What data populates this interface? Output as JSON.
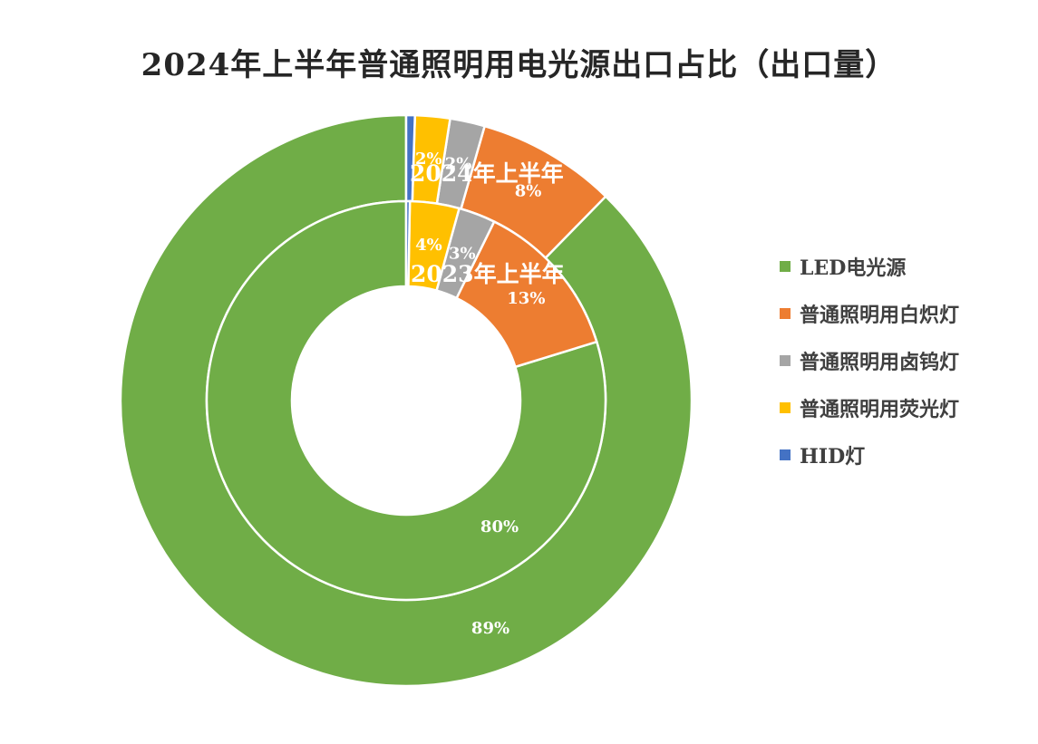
{
  "chart_data": {
    "type": "pie",
    "subtype": "doughnut",
    "title": "2024年上半年普通照明用电光源出口占比（出口量）",
    "categories": [
      "LED电光源",
      "普通照明用白炽灯",
      "普通照明用卤钨灯",
      "普通照明用荧光灯",
      "HID灯"
    ],
    "colors": [
      "#70ad47",
      "#ed7d31",
      "#a5a5a5",
      "#ffc000",
      "#4472c4"
    ],
    "series": [
      {
        "name": "2023年上半年",
        "ring": "inner",
        "values": [
          80,
          13,
          3,
          4,
          0.3
        ],
        "labels": [
          "80%",
          "13%",
          "3%",
          "4%",
          ""
        ]
      },
      {
        "name": "2024年上半年",
        "ring": "outer",
        "values": [
          89,
          8,
          2,
          2,
          0.5
        ],
        "labels": [
          "89%",
          "8%",
          "2%",
          "2%",
          ""
        ]
      }
    ],
    "legend_position": "right"
  }
}
